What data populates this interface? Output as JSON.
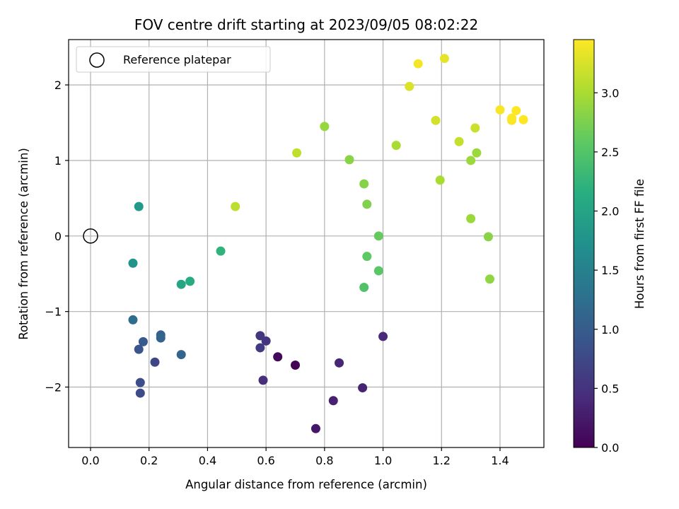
{
  "chart_data": {
    "type": "scatter",
    "title": "FOV centre drift starting at 2023/09/05 08:02:22",
    "xlabel": "Angular distance from reference (arcmin)",
    "ylabel": "Rotation from reference (arcmin)",
    "xlim": [
      -0.075,
      1.55
    ],
    "ylim": [
      -2.8,
      2.6
    ],
    "xticks": [
      0.0,
      0.2,
      0.4,
      0.6,
      0.8,
      1.0,
      1.2,
      1.4
    ],
    "xtick_labels": [
      "0.0",
      "0.2",
      "0.4",
      "0.6",
      "0.8",
      "1.0",
      "1.2",
      "1.4"
    ],
    "yticks": [
      -2,
      -1,
      0,
      1,
      2
    ],
    "ytick_labels": [
      "−2",
      "−1",
      "0",
      "1",
      "2"
    ],
    "grid": true,
    "legend": {
      "placement": "top-left",
      "entries": [
        "Reference platepar"
      ]
    },
    "reference_point": {
      "x": 0.0,
      "y": 0.0
    },
    "colorbar": {
      "label": "Hours from first FF file",
      "colormap": "viridis",
      "range": [
        0.0,
        3.45
      ],
      "ticks": [
        0.0,
        0.5,
        1.0,
        1.5,
        2.0,
        2.5,
        3.0
      ],
      "tick_labels": [
        "0.0",
        "0.5",
        "1.0",
        "1.5",
        "2.0",
        "2.5",
        "3.0"
      ]
    },
    "points": [
      {
        "x": 0.7,
        "y": -1.71,
        "c": 0.02
      },
      {
        "x": 0.64,
        "y": -1.6,
        "c": 0.08
      },
      {
        "x": 0.77,
        "y": -2.55,
        "c": 0.22
      },
      {
        "x": 0.83,
        "y": -2.18,
        "c": 0.3
      },
      {
        "x": 0.93,
        "y": -2.01,
        "c": 0.34
      },
      {
        "x": 0.85,
        "y": -1.68,
        "c": 0.36
      },
      {
        "x": 1.0,
        "y": -1.33,
        "c": 0.4
      },
      {
        "x": 0.59,
        "y": -1.91,
        "c": 0.45
      },
      {
        "x": 0.6,
        "y": -1.39,
        "c": 0.52
      },
      {
        "x": 0.58,
        "y": -1.32,
        "c": 0.55
      },
      {
        "x": 0.58,
        "y": -1.48,
        "c": 0.6
      },
      {
        "x": 0.22,
        "y": -1.67,
        "c": 0.72
      },
      {
        "x": 0.17,
        "y": -2.08,
        "c": 0.78
      },
      {
        "x": 0.17,
        "y": -1.94,
        "c": 0.82
      },
      {
        "x": 0.165,
        "y": -1.5,
        "c": 0.9
      },
      {
        "x": 0.18,
        "y": -1.4,
        "c": 0.98
      },
      {
        "x": 0.24,
        "y": -1.31,
        "c": 1.05
      },
      {
        "x": 0.24,
        "y": -1.35,
        "c": 1.1
      },
      {
        "x": 0.31,
        "y": -1.57,
        "c": 1.12
      },
      {
        "x": 0.145,
        "y": -1.11,
        "c": 1.22
      },
      {
        "x": 0.145,
        "y": -0.36,
        "c": 1.75
      },
      {
        "x": 0.165,
        "y": 0.39,
        "c": 1.85
      },
      {
        "x": 0.31,
        "y": -0.64,
        "c": 2.02
      },
      {
        "x": 0.34,
        "y": -0.6,
        "c": 2.12
      },
      {
        "x": 0.445,
        "y": -0.2,
        "c": 2.22
      },
      {
        "x": 0.935,
        "y": -0.68,
        "c": 2.48
      },
      {
        "x": 0.985,
        "y": -0.46,
        "c": 2.55
      },
      {
        "x": 0.945,
        "y": -0.27,
        "c": 2.58
      },
      {
        "x": 0.985,
        "y": 0.0,
        "c": 2.62
      },
      {
        "x": 0.945,
        "y": 0.42,
        "c": 2.78
      },
      {
        "x": 0.935,
        "y": 0.69,
        "c": 2.8
      },
      {
        "x": 0.885,
        "y": 1.01,
        "c": 2.82
      },
      {
        "x": 0.8,
        "y": 1.45,
        "c": 2.9
      },
      {
        "x": 1.36,
        "y": -0.01,
        "c": 2.82
      },
      {
        "x": 1.365,
        "y": -0.57,
        "c": 2.86
      },
      {
        "x": 1.3,
        "y": 0.23,
        "c": 2.92
      },
      {
        "x": 1.3,
        "y": 1.0,
        "c": 2.92
      },
      {
        "x": 1.32,
        "y": 1.1,
        "c": 2.92
      },
      {
        "x": 1.195,
        "y": 0.74,
        "c": 3.0
      },
      {
        "x": 1.045,
        "y": 1.2,
        "c": 3.0
      },
      {
        "x": 0.495,
        "y": 0.39,
        "c": 3.1
      },
      {
        "x": 0.705,
        "y": 1.1,
        "c": 3.12
      },
      {
        "x": 1.26,
        "y": 1.25,
        "c": 3.15
      },
      {
        "x": 1.315,
        "y": 1.43,
        "c": 3.18
      },
      {
        "x": 1.18,
        "y": 1.53,
        "c": 3.22
      },
      {
        "x": 1.09,
        "y": 1.98,
        "c": 3.26
      },
      {
        "x": 1.21,
        "y": 2.35,
        "c": 3.32
      },
      {
        "x": 1.12,
        "y": 2.28,
        "c": 3.4
      },
      {
        "x": 1.4,
        "y": 1.67,
        "c": 3.42
      },
      {
        "x": 1.44,
        "y": 1.53,
        "c": 3.43
      },
      {
        "x": 1.44,
        "y": 1.56,
        "c": 3.44
      },
      {
        "x": 1.455,
        "y": 1.66,
        "c": 3.45
      },
      {
        "x": 1.48,
        "y": 1.54,
        "c": 3.45
      }
    ]
  }
}
